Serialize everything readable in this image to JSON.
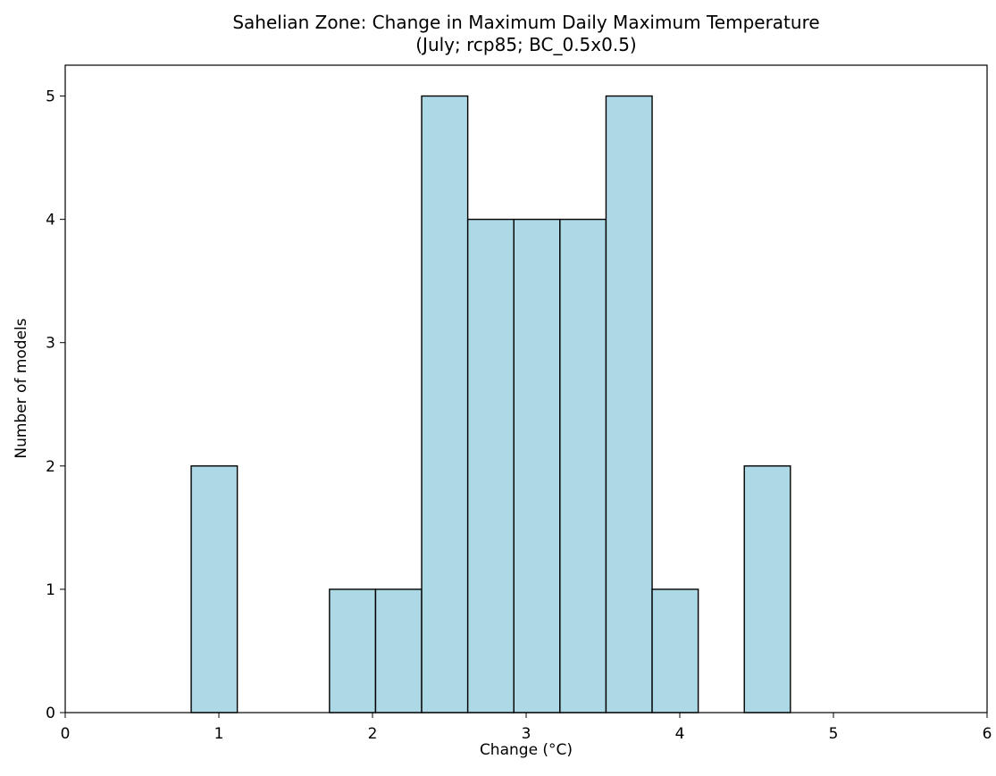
{
  "chart_data": {
    "type": "bar",
    "title": "Sahelian Zone: Change in Maximum Daily Maximum Temperature",
    "subtitle": "(July; rcp85; BC_0.5x0.5)",
    "xlabel": "Change (°C)",
    "ylabel": "Number of models",
    "xlim": [
      0,
      6
    ],
    "ylim": [
      0,
      5.25
    ],
    "xticks": [
      "0",
      "1",
      "2",
      "3",
      "4",
      "5",
      "6"
    ],
    "yticks": [
      "0",
      "1",
      "2",
      "3",
      "4",
      "5"
    ],
    "bins": [
      {
        "x0": 0.82,
        "x1": 1.12,
        "count": 2
      },
      {
        "x0": 1.12,
        "x1": 1.42,
        "count": 0
      },
      {
        "x0": 1.42,
        "x1": 1.72,
        "count": 0
      },
      {
        "x0": 1.72,
        "x1": 2.02,
        "count": 1
      },
      {
        "x0": 2.02,
        "x1": 2.32,
        "count": 1
      },
      {
        "x0": 2.32,
        "x1": 2.62,
        "count": 5
      },
      {
        "x0": 2.62,
        "x1": 2.92,
        "count": 4
      },
      {
        "x0": 2.92,
        "x1": 3.22,
        "count": 4
      },
      {
        "x0": 3.22,
        "x1": 3.52,
        "count": 4
      },
      {
        "x0": 3.52,
        "x1": 3.82,
        "count": 5
      },
      {
        "x0": 3.82,
        "x1": 4.12,
        "count": 1
      },
      {
        "x0": 4.12,
        "x1": 4.42,
        "count": 0
      },
      {
        "x0": 4.42,
        "x1": 4.72,
        "count": 2
      }
    ],
    "bar_color": "#add8e6",
    "edge_color": "#000000",
    "grid": false,
    "legend": "none"
  }
}
